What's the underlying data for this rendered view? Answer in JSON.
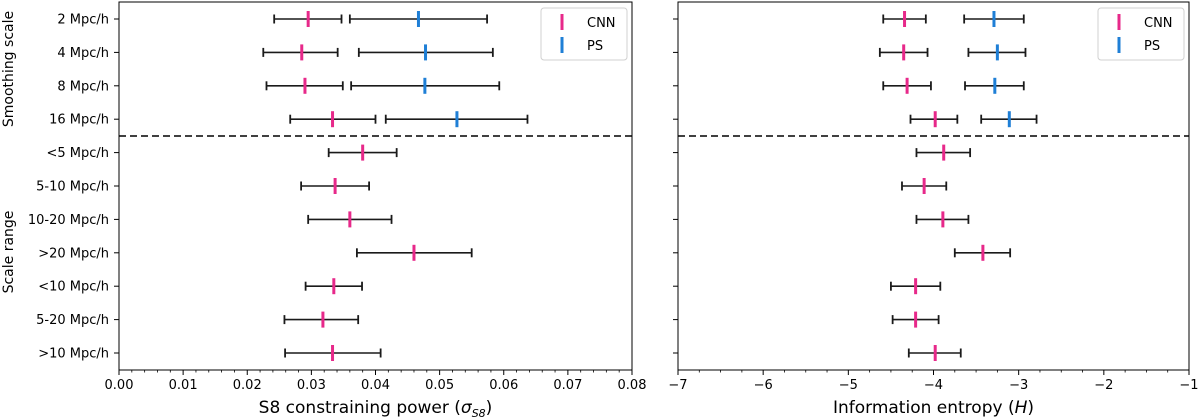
{
  "chart_data": [
    {
      "type": "errorbar",
      "xlabel": "S8 constraining power (σS8)",
      "xlabel_main": "S8 constraining power (",
      "xlabel_sigma": "σ",
      "xlabel_sub": "S8",
      "xlabel_tail": ")",
      "xlim": [
        0.0,
        0.08
      ],
      "xticks": [
        "0.00",
        "0.01",
        "0.02",
        "0.03",
        "0.04",
        "0.05",
        "0.06",
        "0.07",
        "0.08"
      ],
      "group_labels": [
        "Smoothing scale",
        "Scale range"
      ],
      "categories": [
        "2 Mpc/h",
        "4 Mpc/h",
        "8 Mpc/h",
        "16 Mpc/h",
        "<5 Mpc/h",
        "5-10 Mpc/h",
        "10-20 Mpc/h",
        ">20 Mpc/h",
        "<10 Mpc/h",
        "5-20 Mpc/h",
        ">10 Mpc/h"
      ],
      "legend": [
        "CNN",
        "PS"
      ],
      "series": [
        {
          "name": "CNN",
          "color": "#e7298a",
          "values": [
            0.0295,
            0.0285,
            0.029,
            0.0333,
            0.038,
            0.0337,
            0.036,
            0.046,
            0.0335,
            0.0318,
            0.0333
          ],
          "err_low": [
            0.0242,
            0.0225,
            0.023,
            0.0267,
            0.0327,
            0.0284,
            0.0295,
            0.0371,
            0.0291,
            0.0258,
            0.0259
          ],
          "err_high": [
            0.0347,
            0.0341,
            0.0349,
            0.04,
            0.0433,
            0.039,
            0.0425,
            0.055,
            0.0379,
            0.0373,
            0.0408
          ]
        },
        {
          "name": "PS",
          "color": "#1f7fd6",
          "values": [
            0.0467,
            0.0478,
            0.0477,
            0.0527,
            null,
            null,
            null,
            null,
            null,
            null,
            null
          ],
          "err_low": [
            0.036,
            0.0374,
            0.0362,
            0.0416,
            null,
            null,
            null,
            null,
            null,
            null,
            null
          ],
          "err_high": [
            0.0574,
            0.0583,
            0.0593,
            0.0637,
            null,
            null,
            null,
            null,
            null,
            null,
            null
          ]
        }
      ]
    },
    {
      "type": "errorbar",
      "xlabel": "Information entropy (H)",
      "xlabel_main": "Information entropy (",
      "xlabel_sigma": "H",
      "xlabel_sub": "",
      "xlabel_tail": ")",
      "xlim": [
        -7,
        -1
      ],
      "xticks": [
        "−7",
        "−6",
        "−5",
        "−4",
        "−3",
        "−2",
        "−1"
      ],
      "categories": [
        "2 Mpc/h",
        "4 Mpc/h",
        "8 Mpc/h",
        "16 Mpc/h",
        "<5 Mpc/h",
        "5-10 Mpc/h",
        "10-20 Mpc/h",
        ">20 Mpc/h",
        "<10 Mpc/h",
        "5-20 Mpc/h",
        ">10 Mpc/h"
      ],
      "legend": [
        "CNN",
        "PS"
      ],
      "series": [
        {
          "name": "CNN",
          "color": "#e7298a",
          "values": [
            -4.34,
            -4.35,
            -4.31,
            -3.98,
            -3.88,
            -4.11,
            -3.89,
            -3.42,
            -4.21,
            -4.21,
            -3.98
          ],
          "err_low": [
            -4.59,
            -4.63,
            -4.59,
            -4.27,
            -4.2,
            -4.37,
            -4.2,
            -3.75,
            -4.5,
            -4.48,
            -4.29
          ],
          "err_high": [
            -4.09,
            -4.07,
            -4.03,
            -3.72,
            -3.57,
            -3.85,
            -3.59,
            -3.1,
            -3.92,
            -3.94,
            -3.68
          ]
        },
        {
          "name": "PS",
          "color": "#1f7fd6",
          "values": [
            -3.29,
            -3.25,
            -3.28,
            -3.11,
            null,
            null,
            null,
            null,
            null,
            null,
            null
          ],
          "err_low": [
            -3.64,
            -3.59,
            -3.63,
            -3.44,
            null,
            null,
            null,
            null,
            null,
            null,
            null
          ],
          "err_high": [
            -2.94,
            -2.92,
            -2.94,
            -2.79,
            null,
            null,
            null,
            null,
            null,
            null,
            null
          ]
        }
      ]
    }
  ]
}
